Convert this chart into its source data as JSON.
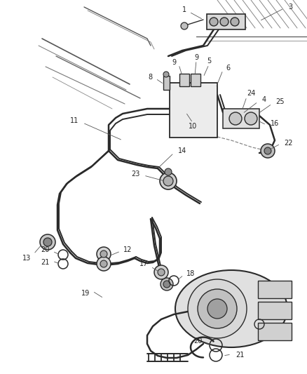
{
  "background_color": "#ffffff",
  "fig_width": 4.38,
  "fig_height": 5.33,
  "dpi": 100,
  "line_color": "#2a2a2a",
  "label_color": "#222222",
  "label_fontsize": 7.0,
  "leader_color": "#555555",
  "leader_lw": 0.6,
  "pipe_lw": 1.8,
  "pipe_lw2": 1.4,
  "hatch_lw": 0.7
}
